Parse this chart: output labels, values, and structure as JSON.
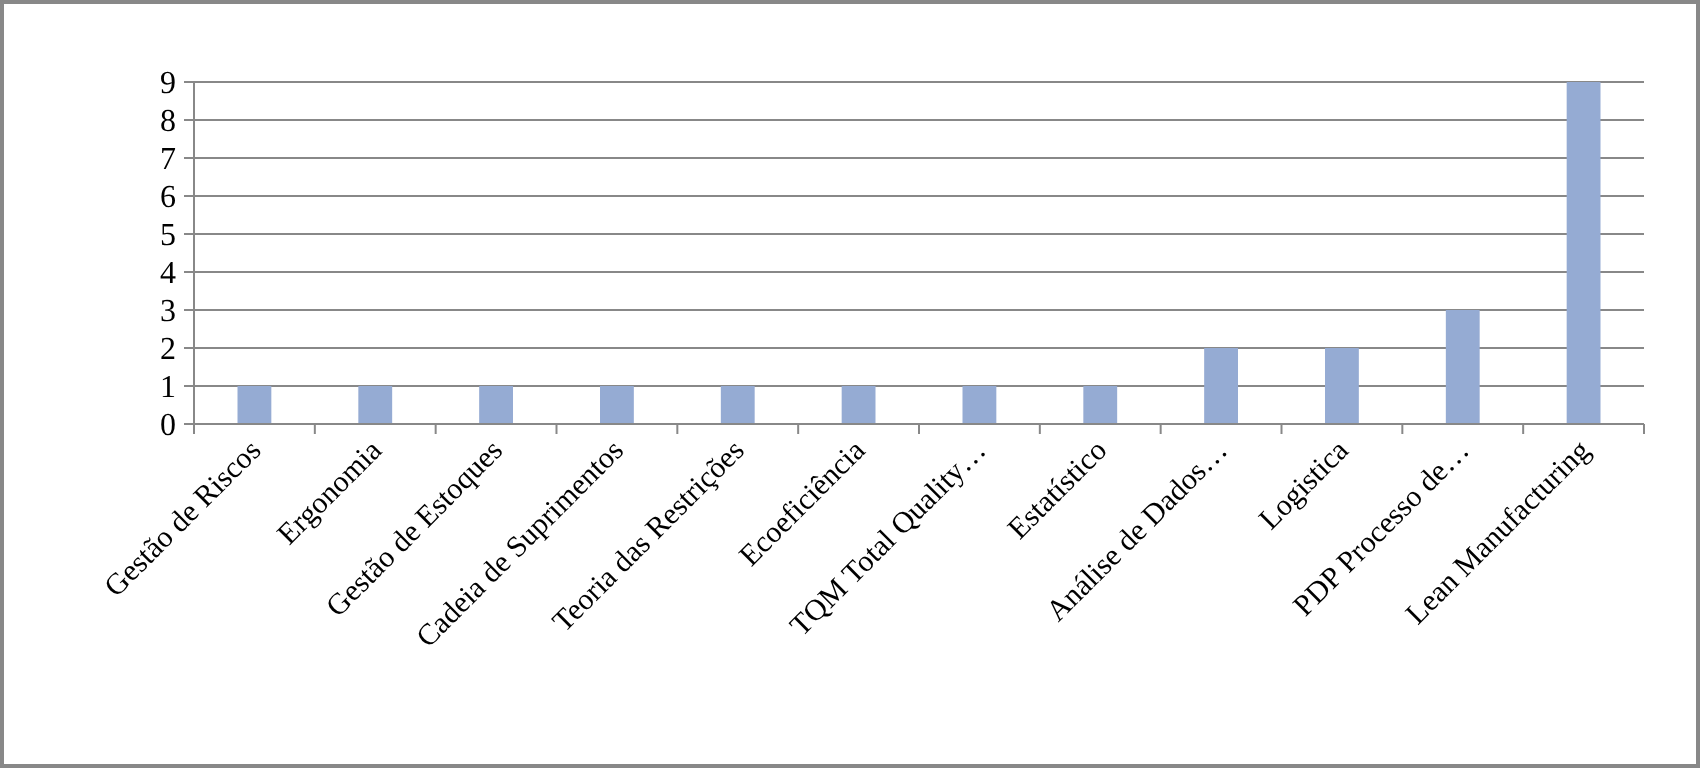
{
  "chart_data": {
    "type": "bar",
    "categories": [
      "Gestão de Riscos",
      "Ergonomia",
      "Gestão de Estoques",
      "Cadeia de Suprimentos",
      "Teoria das Restrições",
      "Ecoeficiência",
      "TQM Total Quality…",
      "Estatístico",
      "Análise de Dados…",
      "Logistica",
      "PDP Processo de…",
      "Lean Manufacturing"
    ],
    "values": [
      1,
      1,
      1,
      1,
      1,
      1,
      1,
      1,
      2,
      2,
      3,
      9
    ],
    "color": "#95abd3",
    "ylim": [
      0,
      9
    ],
    "yticks": [
      0,
      1,
      2,
      3,
      4,
      5,
      6,
      7,
      8,
      9
    ],
    "grid": "y"
  }
}
